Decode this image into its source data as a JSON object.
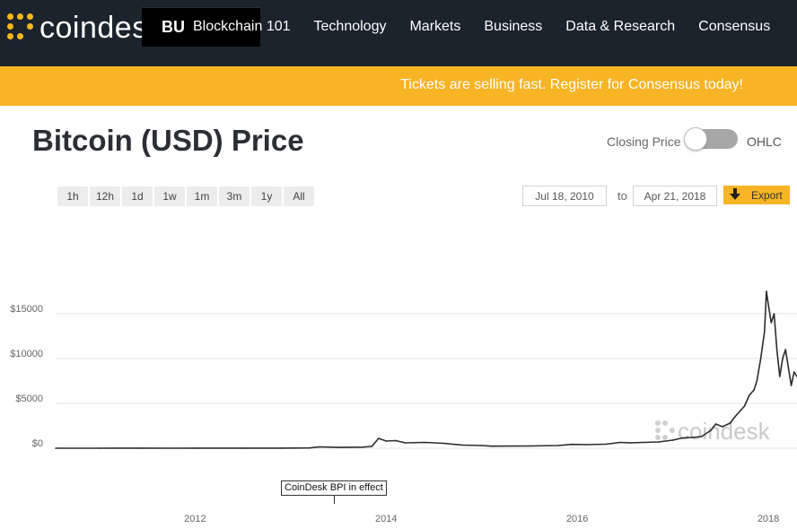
{
  "nav": {
    "logo_text": "coindes",
    "partial_item": "BU",
    "items": [
      "Blockchain 101",
      "Technology",
      "Markets",
      "Business",
      "Data & Research",
      "Consensus"
    ]
  },
  "banner": {
    "text": "Tickets are selling fast. Register for Consensus today!"
  },
  "page": {
    "title": "Bitcoin (USD) Price",
    "toggle_left": "Closing Price",
    "toggle_right": "OHLC",
    "toggle_state": "Closing Price"
  },
  "ranges": [
    "1h",
    "12h",
    "1d",
    "1w",
    "1m",
    "3m",
    "1y",
    "All"
  ],
  "dates": {
    "from": "Jul 18, 2010",
    "to_label": "to",
    "to": "Apr 21, 2018"
  },
  "export": {
    "label": "Export"
  },
  "annotation": {
    "text": "CoinDesk BPI in effect"
  },
  "watermark": {
    "text": "coindesk"
  },
  "colors": {
    "nav_bg": "#1b232c",
    "accent": "#f7b425",
    "line": "#2b2b2b"
  },
  "chart_data": {
    "type": "line",
    "title": "",
    "xlabel": "",
    "ylabel": "",
    "y_ticks": [
      {
        "value": 0,
        "label": "$0"
      },
      {
        "value": 5000,
        "label": "$5000"
      },
      {
        "value": 10000,
        "label": "$10000"
      },
      {
        "value": 15000,
        "label": "$15000"
      }
    ],
    "x_ticks": [
      {
        "value": 2012.0,
        "label": "2012"
      },
      {
        "value": 2014.0,
        "label": "2014"
      },
      {
        "value": 2016.0,
        "label": "2016"
      },
      {
        "value": 2018.0,
        "label": "2018"
      }
    ],
    "xlim": [
      2010.54,
      2018.3
    ],
    "ylim": [
      0,
      20000
    ],
    "grid": true,
    "annotation_x": 2013.5,
    "series": [
      {
        "x": [
          2010.54,
          2011.0,
          2011.45,
          2011.8,
          2012.0,
          2012.5,
          2012.9,
          2013.2,
          2013.3,
          2013.5,
          2013.75,
          2013.85,
          2013.92,
          2014.0,
          2014.1,
          2014.2,
          2014.4,
          2014.6,
          2014.8,
          2015.0,
          2015.1,
          2015.5,
          2015.8,
          2015.95,
          2016.1,
          2016.3,
          2016.45,
          2016.55,
          2016.7,
          2016.85,
          2017.0,
          2017.1,
          2017.2,
          2017.3,
          2017.4,
          2017.45,
          2017.52,
          2017.6,
          2017.65,
          2017.7,
          2017.75,
          2017.8,
          2017.85,
          2017.88,
          2017.92,
          2017.96,
          2017.98,
          2018.0,
          2018.03,
          2018.06,
          2018.09,
          2018.12,
          2018.15,
          2018.18,
          2018.21,
          2018.24,
          2018.27,
          2018.3
        ],
        "y": [
          0,
          1,
          15,
          3,
          5,
          10,
          13,
          30,
          150,
          95,
          120,
          200,
          1100,
          800,
          850,
          600,
          650,
          550,
          350,
          300,
          230,
          250,
          300,
          430,
          400,
          450,
          650,
          600,
          650,
          700,
          900,
          1150,
          1200,
          1300,
          2000,
          2700,
          2400,
          2800,
          3500,
          4100,
          4700,
          5900,
          6500,
          7500,
          10000,
          13000,
          17500,
          16000,
          14000,
          15000,
          11000,
          8000,
          10000,
          11000,
          9000,
          7000,
          8500,
          8000
        ]
      }
    ]
  }
}
